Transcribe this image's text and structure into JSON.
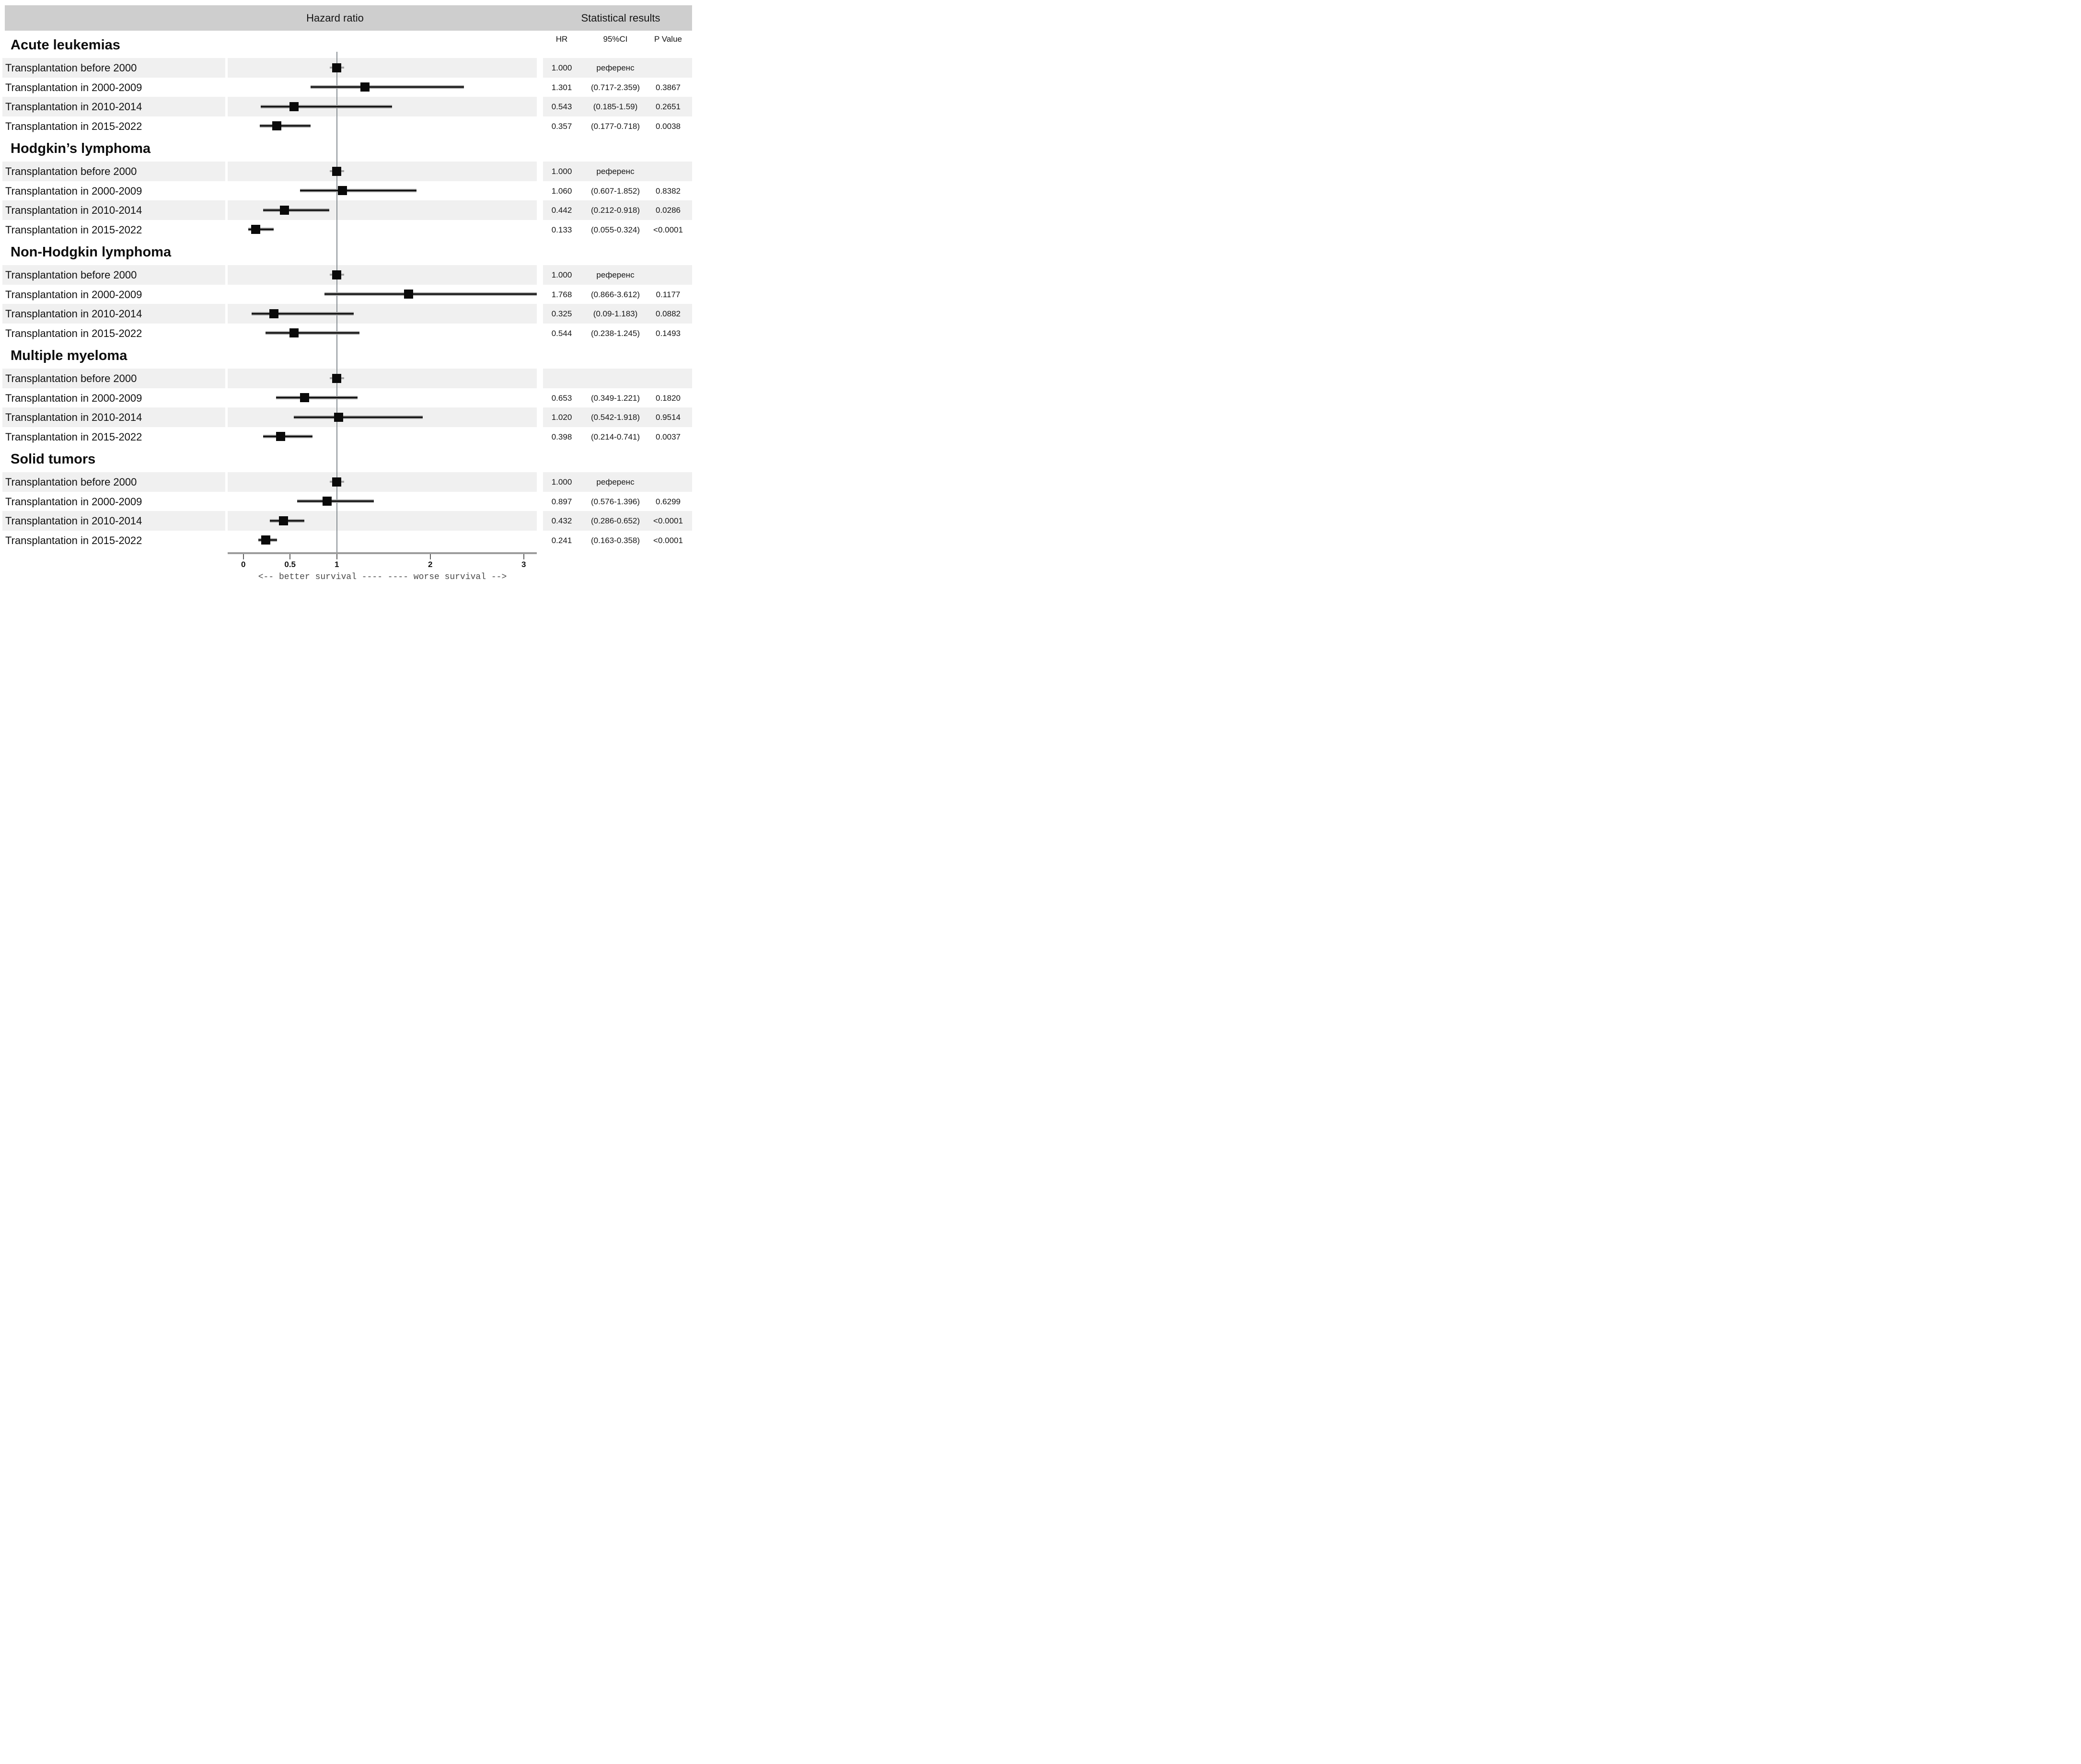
{
  "header": {
    "hazard_ratio": "Hazard ratio",
    "statistical_results": "Statistical results"
  },
  "columns": {
    "hr": "HR",
    "ci": "95%CI",
    "p": "P Value"
  },
  "colors": {
    "header_band": "#cecece",
    "row_band": "#f0f0f0",
    "marker": "#0a0a0a",
    "ci_core": "#0f0f0f",
    "ci_fringe": "#9a9a9a",
    "reference_line": "#878e93",
    "axis_bar": "#9c9c9c",
    "caption_text": "#4a4a4a"
  },
  "chart_data": {
    "type": "forest",
    "title": "Hazard ratio",
    "xlabel": "",
    "xlim": [
      0,
      3.3
    ],
    "reference_value": 1,
    "axis": {
      "tick_values": [
        0,
        0.5,
        1,
        2,
        3
      ],
      "tick_labels": [
        "0",
        "0.5",
        "1",
        "2",
        "3"
      ],
      "caption": "<-- better survival ---- ---- worse survival -->"
    },
    "sections": [
      {
        "title": "Acute leukemias",
        "rows": [
          {
            "label": "Transplantation before 2000",
            "reference": true,
            "hr": 1.0,
            "lo": 1.0,
            "hi": 1.0,
            "hr_text": "1.000",
            "ci_text": "референс",
            "p_text": ""
          },
          {
            "label": "Transplantation in 2000-2009",
            "reference": false,
            "hr": 1.301,
            "lo": 0.717,
            "hi": 2.359,
            "hr_text": "1.301",
            "ci_text": "(0.717-2.359)",
            "p_text": "0.3867"
          },
          {
            "label": "Transplantation in 2010-2014",
            "reference": false,
            "hr": 0.543,
            "lo": 0.185,
            "hi": 1.59,
            "hr_text": "0.543",
            "ci_text": "(0.185-1.59)",
            "p_text": "0.2651"
          },
          {
            "label": "Transplantation in 2015-2022",
            "reference": false,
            "hr": 0.357,
            "lo": 0.177,
            "hi": 0.718,
            "hr_text": "0.357",
            "ci_text": "(0.177-0.718)",
            "p_text": "0.0038"
          }
        ]
      },
      {
        "title": "Hodgkin’s lymphoma",
        "rows": [
          {
            "label": "Transplantation before 2000",
            "reference": true,
            "hr": 1.0,
            "lo": 1.0,
            "hi": 1.0,
            "hr_text": "1.000",
            "ci_text": "референс",
            "p_text": ""
          },
          {
            "label": "Transplantation in 2000-2009",
            "reference": false,
            "hr": 1.06,
            "lo": 0.607,
            "hi": 1.852,
            "hr_text": "1.060",
            "ci_text": "(0.607-1.852)",
            "p_text": "0.8382"
          },
          {
            "label": "Transplantation in 2010-2014",
            "reference": false,
            "hr": 0.442,
            "lo": 0.212,
            "hi": 0.918,
            "hr_text": "0.442",
            "ci_text": "(0.212-0.918)",
            "p_text": "0.0286"
          },
          {
            "label": "Transplantation in 2015-2022",
            "reference": false,
            "hr": 0.133,
            "lo": 0.055,
            "hi": 0.324,
            "hr_text": "0.133",
            "ci_text": "(0.055-0.324)",
            "p_text": "<0.0001"
          }
        ]
      },
      {
        "title": "Non-Hodgkin lymphoma",
        "rows": [
          {
            "label": "Transplantation before 2000",
            "reference": true,
            "hr": 1.0,
            "lo": 1.0,
            "hi": 1.0,
            "hr_text": "1.000",
            "ci_text": "референс",
            "p_text": ""
          },
          {
            "label": "Transplantation in 2000-2009",
            "reference": false,
            "hr": 1.768,
            "lo": 0.866,
            "hi": 3.612,
            "hr_text": "1.768",
            "ci_text": "(0.866-3.612)",
            "p_text": "0.1177"
          },
          {
            "label": "Transplantation in 2010-2014",
            "reference": false,
            "hr": 0.325,
            "lo": 0.09,
            "hi": 1.183,
            "hr_text": "0.325",
            "ci_text": "(0.09-1.183)",
            "p_text": "0.0882"
          },
          {
            "label": "Transplantation in 2015-2022",
            "reference": false,
            "hr": 0.544,
            "lo": 0.238,
            "hi": 1.245,
            "hr_text": "0.544",
            "ci_text": "(0.238-1.245)",
            "p_text": "0.1493"
          }
        ]
      },
      {
        "title": "Multiple myeloma",
        "rows": [
          {
            "label": "Transplantation before 2000",
            "reference": true,
            "hr": 1.0,
            "lo": 1.0,
            "hi": 1.0,
            "hr_text": "",
            "ci_text": "",
            "p_text": ""
          },
          {
            "label": "Transplantation in 2000-2009",
            "reference": false,
            "hr": 0.653,
            "lo": 0.349,
            "hi": 1.221,
            "hr_text": "0.653",
            "ci_text": "(0.349-1.221)",
            "p_text": "0.1820"
          },
          {
            "label": "Transplantation in 2010-2014",
            "reference": false,
            "hr": 1.02,
            "lo": 0.542,
            "hi": 1.918,
            "hr_text": "1.020",
            "ci_text": "(0.542-1.918)",
            "p_text": "0.9514"
          },
          {
            "label": "Transplantation in 2015-2022",
            "reference": false,
            "hr": 0.398,
            "lo": 0.214,
            "hi": 0.741,
            "hr_text": "0.398",
            "ci_text": "(0.214-0.741)",
            "p_text": "0.0037"
          }
        ]
      },
      {
        "title": "Solid tumors",
        "rows": [
          {
            "label": "Transplantation before 2000",
            "reference": true,
            "hr": 1.0,
            "lo": 1.0,
            "hi": 1.0,
            "hr_text": "1.000",
            "ci_text": "референс",
            "p_text": ""
          },
          {
            "label": "Transplantation in 2000-2009",
            "reference": false,
            "hr": 0.897,
            "lo": 0.576,
            "hi": 1.396,
            "hr_text": "0.897",
            "ci_text": "(0.576-1.396)",
            "p_text": "0.6299"
          },
          {
            "label": "Transplantation in 2010-2014",
            "reference": false,
            "hr": 0.432,
            "lo": 0.286,
            "hi": 0.652,
            "hr_text": "0.432",
            "ci_text": "(0.286-0.652)",
            "p_text": "<0.0001"
          },
          {
            "label": "Transplantation in 2015-2022",
            "reference": false,
            "hr": 0.241,
            "lo": 0.163,
            "hi": 0.358,
            "hr_text": "0.241",
            "ci_text": "(0.163-0.358)",
            "p_text": "<0.0001"
          }
        ]
      }
    ]
  }
}
